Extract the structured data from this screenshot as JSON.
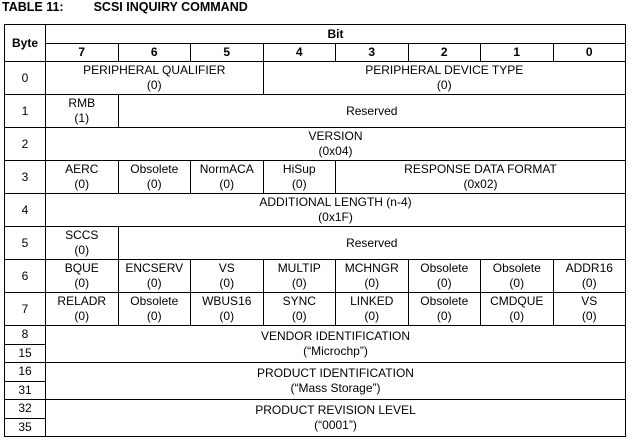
{
  "title": {
    "label": "TABLE 11:",
    "text": "SCSI INQUIRY COMMAND"
  },
  "table": {
    "header": {
      "byte": "Byte",
      "bit": "Bit",
      "bits": [
        "7",
        "6",
        "5",
        "4",
        "3",
        "2",
        "1",
        "0"
      ]
    },
    "rows": [
      {
        "byte": [
          "0"
        ],
        "cells": [
          {
            "name": "PERIPHERAL QUALIFIER",
            "value": "(0)"
          },
          {
            "name": "PERIPHERAL DEVICE TYPE",
            "value": "(0)"
          }
        ]
      },
      {
        "byte": [
          "1"
        ],
        "cells": [
          {
            "name": "RMB",
            "value": "(1)"
          },
          {
            "name": "Reserved"
          }
        ]
      },
      {
        "byte": [
          "2"
        ],
        "cells": [
          {
            "name": "VERSION",
            "value": "(0x04)"
          }
        ]
      },
      {
        "byte": [
          "3"
        ],
        "cells": [
          {
            "name": "AERC",
            "value": "(0)"
          },
          {
            "name": "Obsolete",
            "value": "(0)"
          },
          {
            "name": "NormACA",
            "value": "(0)"
          },
          {
            "name": "HiSup",
            "value": "(0)"
          },
          {
            "name": "RESPONSE DATA FORMAT",
            "value": "(0x02)"
          }
        ]
      },
      {
        "byte": [
          "4"
        ],
        "cells": [
          {
            "name": "ADDITIONAL LENGTH (n-4)",
            "value": "(0x1F)"
          }
        ]
      },
      {
        "byte": [
          "5"
        ],
        "cells": [
          {
            "name": "SCCS",
            "value": "(0)"
          },
          {
            "name": "Reserved"
          }
        ]
      },
      {
        "byte": [
          "6"
        ],
        "cells": [
          {
            "name": "BQUE",
            "value": "(0)"
          },
          {
            "name": "ENCSERV",
            "value": "(0)"
          },
          {
            "name": "VS",
            "value": "(0)"
          },
          {
            "name": "MULTIP",
            "value": "(0)"
          },
          {
            "name": "MCHNGR",
            "value": "(0)"
          },
          {
            "name": "Obsolete",
            "value": "(0)"
          },
          {
            "name": "Obsolete",
            "value": "(0)"
          },
          {
            "name": "ADDR16",
            "value": "(0)"
          }
        ]
      },
      {
        "byte": [
          "7"
        ],
        "cells": [
          {
            "name": "RELADR",
            "value": "(0)"
          },
          {
            "name": "Obsolete",
            "value": "(0)"
          },
          {
            "name": "WBUS16",
            "value": "(0)"
          },
          {
            "name": "SYNC",
            "value": "(0)"
          },
          {
            "name": "LINKED",
            "value": "(0)"
          },
          {
            "name": "Obsolete",
            "value": "(0)"
          },
          {
            "name": "CMDQUE",
            "value": "(0)"
          },
          {
            "name": "VS",
            "value": "(0)"
          }
        ]
      },
      {
        "byte": [
          "8",
          "15"
        ],
        "cells": [
          {
            "name": "VENDOR IDENTIFICATION",
            "value": "(“Microchp”)"
          }
        ]
      },
      {
        "byte": [
          "16",
          "31"
        ],
        "cells": [
          {
            "name": "PRODUCT IDENTIFICATION",
            "value": "(“Mass Storage”)"
          }
        ]
      },
      {
        "byte": [
          "32",
          "35"
        ],
        "cells": [
          {
            "name": "PRODUCT REVISION LEVEL",
            "value": "(“0001”)"
          }
        ]
      }
    ]
  }
}
